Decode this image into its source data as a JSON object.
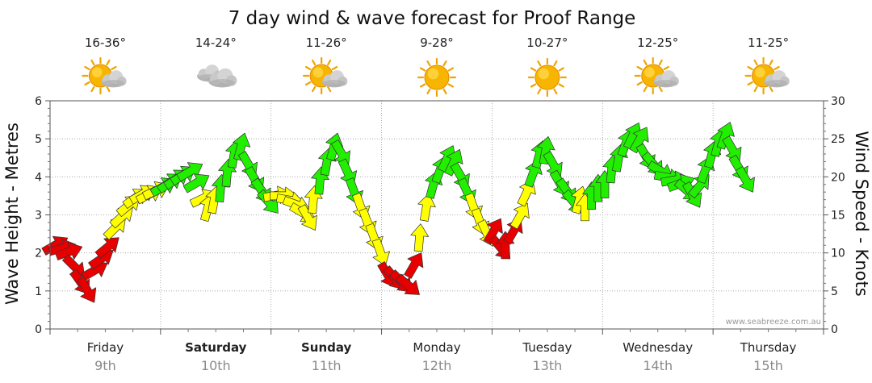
{
  "chart_data": {
    "type": "line",
    "title": "7 day wind & wave forecast for Proof Range",
    "ylabel_left": "Wave Height - Metres",
    "ylabel_right": "Wind Speed - Knots",
    "ylim_left": [
      0,
      6
    ],
    "ylim_right": [
      0,
      30
    ],
    "left_ticks": [
      "0",
      "1",
      "2",
      "3",
      "4",
      "5",
      "6"
    ],
    "right_ticks": [
      "0",
      "5",
      "10",
      "15",
      "20",
      "25",
      "30"
    ],
    "credit": "www.seabreeze.com.au",
    "colors": {
      "strong": "#e80000",
      "moderate": "#ffff00",
      "light": "#22ee00",
      "outline": "#333333",
      "grid": "#999999"
    },
    "days": [
      {
        "name": "Friday",
        "date": "9th",
        "temp": "16-36°",
        "icon": "sun-cloud-icon",
        "bold": false
      },
      {
        "name": "Saturday",
        "date": "10th",
        "temp": "14-24°",
        "icon": "cloudy-icon",
        "bold": true
      },
      {
        "name": "Sunday",
        "date": "11th",
        "temp": "11-26°",
        "icon": "sun-cloud-icon",
        "bold": true
      },
      {
        "name": "Monday",
        "date": "12th",
        "temp": "9-28°",
        "icon": "sun-icon",
        "bold": false
      },
      {
        "name": "Tuesday",
        "date": "13th",
        "temp": "10-27°",
        "icon": "sun-icon",
        "bold": false
      },
      {
        "name": "Wednesday",
        "date": "14th",
        "temp": "12-25°",
        "icon": "sun-cloud-icon",
        "bold": false
      },
      {
        "name": "Thursday",
        "date": "15th",
        "temp": "11-25°",
        "icon": "sun-cloud-icon",
        "bold": false
      }
    ],
    "series": [
      {
        "name": "Wind Speed (knots)",
        "note": "time in days from start of Friday; dir = bearing arrow points to (deg); cat = colour category",
        "points": [
          {
            "t": 0.02,
            "v": 10.8,
            "dir": 60,
            "cat": "strong"
          },
          {
            "t": 0.08,
            "v": 10.5,
            "dir": 75,
            "cat": "strong"
          },
          {
            "t": 0.14,
            "v": 10.0,
            "dir": 70,
            "cat": "strong"
          },
          {
            "t": 0.2,
            "v": 8.5,
            "dir": 135,
            "cat": "strong"
          },
          {
            "t": 0.26,
            "v": 6.5,
            "dir": 145,
            "cat": "strong"
          },
          {
            "t": 0.32,
            "v": 5.5,
            "dir": 150,
            "cat": "strong"
          },
          {
            "t": 0.38,
            "v": 7.5,
            "dir": 60,
            "cat": "strong"
          },
          {
            "t": 0.44,
            "v": 9.0,
            "dir": 55,
            "cat": "strong"
          },
          {
            "t": 0.5,
            "v": 10.5,
            "dir": 50,
            "cat": "strong"
          },
          {
            "t": 0.57,
            "v": 13.0,
            "dir": 45,
            "cat": "moderate"
          },
          {
            "t": 0.63,
            "v": 14.5,
            "dir": 48,
            "cat": "moderate"
          },
          {
            "t": 0.69,
            "v": 16.0,
            "dir": 50,
            "cat": "moderate"
          },
          {
            "t": 0.75,
            "v": 17.0,
            "dir": 55,
            "cat": "moderate"
          },
          {
            "t": 0.81,
            "v": 17.5,
            "dir": 60,
            "cat": "moderate"
          },
          {
            "t": 0.87,
            "v": 17.5,
            "dir": 62,
            "cat": "moderate"
          },
          {
            "t": 0.93,
            "v": 18.0,
            "dir": 65,
            "cat": "moderate"
          },
          {
            "t": 1.0,
            "v": 18.5,
            "dir": 60,
            "cat": "light"
          },
          {
            "t": 1.06,
            "v": 19.0,
            "dir": 55,
            "cat": "light"
          },
          {
            "t": 1.12,
            "v": 19.5,
            "dir": 55,
            "cat": "light"
          },
          {
            "t": 1.18,
            "v": 20.0,
            "dir": 58,
            "cat": "light"
          },
          {
            "t": 1.24,
            "v": 20.5,
            "dir": 60,
            "cat": "light"
          },
          {
            "t": 1.3,
            "v": 19.0,
            "dir": 60,
            "cat": "light"
          },
          {
            "t": 1.36,
            "v": 17.0,
            "dir": 65,
            "cat": "moderate"
          },
          {
            "t": 1.42,
            "v": 15.5,
            "dir": 15,
            "cat": "moderate"
          },
          {
            "t": 1.48,
            "v": 16.5,
            "dir": 10,
            "cat": "moderate"
          },
          {
            "t": 1.54,
            "v": 18.0,
            "dir": 5,
            "cat": "light"
          },
          {
            "t": 1.6,
            "v": 20.0,
            "dir": 5,
            "cat": "light"
          },
          {
            "t": 1.66,
            "v": 22.5,
            "dir": 10,
            "cat": "light"
          },
          {
            "t": 1.72,
            "v": 23.5,
            "dir": 15,
            "cat": "light"
          },
          {
            "t": 1.78,
            "v": 22.0,
            "dir": 150,
            "cat": "light"
          },
          {
            "t": 1.84,
            "v": 20.0,
            "dir": 150,
            "cat": "light"
          },
          {
            "t": 1.9,
            "v": 18.5,
            "dir": 145,
            "cat": "light"
          },
          {
            "t": 1.96,
            "v": 17.0,
            "dir": 140,
            "cat": "light"
          },
          {
            "t": 2.02,
            "v": 17.5,
            "dir": 80,
            "cat": "moderate"
          },
          {
            "t": 2.08,
            "v": 17.5,
            "dir": 90,
            "cat": "moderate"
          },
          {
            "t": 2.14,
            "v": 17.0,
            "dir": 100,
            "cat": "moderate"
          },
          {
            "t": 2.2,
            "v": 16.5,
            "dir": 110,
            "cat": "moderate"
          },
          {
            "t": 2.26,
            "v": 15.5,
            "dir": 120,
            "cat": "moderate"
          },
          {
            "t": 2.32,
            "v": 15.0,
            "dir": 150,
            "cat": "moderate"
          },
          {
            "t": 2.38,
            "v": 16.5,
            "dir": 5,
            "cat": "moderate"
          },
          {
            "t": 2.44,
            "v": 19.0,
            "dir": 5,
            "cat": "light"
          },
          {
            "t": 2.5,
            "v": 21.5,
            "dir": 10,
            "cat": "light"
          },
          {
            "t": 2.56,
            "v": 23.5,
            "dir": 15,
            "cat": "light"
          },
          {
            "t": 2.62,
            "v": 23.5,
            "dir": 150,
            "cat": "light"
          },
          {
            "t": 2.68,
            "v": 21.0,
            "dir": 155,
            "cat": "light"
          },
          {
            "t": 2.74,
            "v": 18.5,
            "dir": 160,
            "cat": "light"
          },
          {
            "t": 2.8,
            "v": 16.5,
            "dir": 160,
            "cat": "moderate"
          },
          {
            "t": 2.86,
            "v": 14.5,
            "dir": 160,
            "cat": "moderate"
          },
          {
            "t": 2.92,
            "v": 12.5,
            "dir": 160,
            "cat": "moderate"
          },
          {
            "t": 2.98,
            "v": 10.5,
            "dir": 160,
            "cat": "moderate"
          },
          {
            "t": 3.04,
            "v": 7.5,
            "dir": 150,
            "cat": "strong"
          },
          {
            "t": 3.1,
            "v": 7.0,
            "dir": 140,
            "cat": "strong"
          },
          {
            "t": 3.16,
            "v": 6.5,
            "dir": 135,
            "cat": "strong"
          },
          {
            "t": 3.22,
            "v": 6.0,
            "dir": 130,
            "cat": "strong"
          },
          {
            "t": 3.28,
            "v": 8.0,
            "dir": 30,
            "cat": "strong"
          },
          {
            "t": 3.34,
            "v": 11.5,
            "dir": 5,
            "cat": "moderate"
          },
          {
            "t": 3.4,
            "v": 15.5,
            "dir": 10,
            "cat": "moderate"
          },
          {
            "t": 3.46,
            "v": 18.5,
            "dir": 15,
            "cat": "light"
          },
          {
            "t": 3.52,
            "v": 20.5,
            "dir": 20,
            "cat": "light"
          },
          {
            "t": 3.58,
            "v": 22.0,
            "dir": 25,
            "cat": "light"
          },
          {
            "t": 3.64,
            "v": 21.5,
            "dir": 25,
            "cat": "light"
          },
          {
            "t": 3.7,
            "v": 20.5,
            "dir": 150,
            "cat": "light"
          },
          {
            "t": 3.76,
            "v": 18.5,
            "dir": 155,
            "cat": "light"
          },
          {
            "t": 3.82,
            "v": 16.5,
            "dir": 160,
            "cat": "moderate"
          },
          {
            "t": 3.88,
            "v": 14.5,
            "dir": 160,
            "cat": "moderate"
          },
          {
            "t": 3.94,
            "v": 13.0,
            "dir": 155,
            "cat": "moderate"
          },
          {
            "t": 4.0,
            "v": 12.5,
            "dir": 30,
            "cat": "strong"
          },
          {
            "t": 4.06,
            "v": 11.0,
            "dir": 140,
            "cat": "strong"
          },
          {
            "t": 4.12,
            "v": 10.5,
            "dir": 0,
            "cat": "strong"
          },
          {
            "t": 4.18,
            "v": 12.5,
            "dir": 30,
            "cat": "strong"
          },
          {
            "t": 4.24,
            "v": 14.5,
            "dir": 30,
            "cat": "moderate"
          },
          {
            "t": 4.3,
            "v": 17.5,
            "dir": 25,
            "cat": "moderate"
          },
          {
            "t": 4.36,
            "v": 20.0,
            "dir": 20,
            "cat": "light"
          },
          {
            "t": 4.42,
            "v": 22.5,
            "dir": 15,
            "cat": "light"
          },
          {
            "t": 4.48,
            "v": 23.0,
            "dir": 10,
            "cat": "light"
          },
          {
            "t": 4.54,
            "v": 22.0,
            "dir": 150,
            "cat": "light"
          },
          {
            "t": 4.6,
            "v": 19.5,
            "dir": 150,
            "cat": "light"
          },
          {
            "t": 4.66,
            "v": 18.5,
            "dir": 145,
            "cat": "light"
          },
          {
            "t": 4.72,
            "v": 17.0,
            "dir": 140,
            "cat": "light"
          },
          {
            "t": 4.78,
            "v": 16.5,
            "dir": 15,
            "cat": "moderate"
          },
          {
            "t": 4.84,
            "v": 15.5,
            "dir": 0,
            "cat": "moderate"
          },
          {
            "t": 4.9,
            "v": 17.0,
            "dir": 0,
            "cat": "light"
          },
          {
            "t": 4.96,
            "v": 18.0,
            "dir": 0,
            "cat": "light"
          },
          {
            "t": 5.02,
            "v": 18.5,
            "dir": 0,
            "cat": "light"
          },
          {
            "t": 5.08,
            "v": 20.5,
            "dir": 5,
            "cat": "light"
          },
          {
            "t": 5.14,
            "v": 22.0,
            "dir": 10,
            "cat": "light"
          },
          {
            "t": 5.2,
            "v": 24.0,
            "dir": 20,
            "cat": "light"
          },
          {
            "t": 5.26,
            "v": 25.0,
            "dir": 25,
            "cat": "light"
          },
          {
            "t": 5.32,
            "v": 24.5,
            "dir": 30,
            "cat": "light"
          },
          {
            "t": 5.38,
            "v": 23.0,
            "dir": 150,
            "cat": "light"
          },
          {
            "t": 5.44,
            "v": 22.0,
            "dir": 140,
            "cat": "light"
          },
          {
            "t": 5.5,
            "v": 21.0,
            "dir": 120,
            "cat": "light"
          },
          {
            "t": 5.56,
            "v": 20.0,
            "dir": 100,
            "cat": "light"
          },
          {
            "t": 5.62,
            "v": 19.5,
            "dir": 80,
            "cat": "light"
          },
          {
            "t": 5.68,
            "v": 19.0,
            "dir": 70,
            "cat": "light"
          },
          {
            "t": 5.74,
            "v": 18.5,
            "dir": 130,
            "cat": "light"
          },
          {
            "t": 5.8,
            "v": 18.0,
            "dir": 150,
            "cat": "light"
          },
          {
            "t": 5.86,
            "v": 18.5,
            "dir": 40,
            "cat": "light"
          },
          {
            "t": 5.92,
            "v": 20.5,
            "dir": 20,
            "cat": "light"
          },
          {
            "t": 5.98,
            "v": 22.5,
            "dir": 15,
            "cat": "light"
          },
          {
            "t": 6.04,
            "v": 24.0,
            "dir": 15,
            "cat": "light"
          },
          {
            "t": 6.1,
            "v": 25.0,
            "dir": 20,
            "cat": "light"
          },
          {
            "t": 6.16,
            "v": 24.0,
            "dir": 150,
            "cat": "light"
          },
          {
            "t": 6.22,
            "v": 21.5,
            "dir": 150,
            "cat": "light"
          },
          {
            "t": 6.28,
            "v": 20.0,
            "dir": 150,
            "cat": "light"
          }
        ]
      }
    ]
  }
}
